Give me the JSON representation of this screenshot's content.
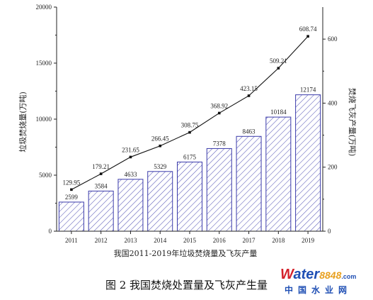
{
  "chart_data": {
    "type": "bar+line",
    "xlabel": "我国2011-2019年垃圾焚烧量及飞灰产量",
    "categories": [
      "2011",
      "2012",
      "2013",
      "2014",
      "2015",
      "2016",
      "2017",
      "2018",
      "2019"
    ],
    "bars": {
      "values": [
        2599,
        3584,
        4633,
        5329,
        6175,
        7378,
        8463,
        10184,
        12174
      ],
      "labels": [
        "2599",
        "3584",
        "4633",
        "5329",
        "6175",
        "7378",
        "8463",
        "10184",
        "12174"
      ],
      "axis": "left",
      "ylabel": "垃圾焚烧量(万吨)",
      "ylim": [
        0,
        20000
      ],
      "ticks": [
        0,
        5000,
        10000,
        15000,
        20000
      ],
      "fill_pattern": "diagonal-hatch",
      "color": "#3a3aaa"
    },
    "line": {
      "values": [
        129.95,
        179.21,
        231.65,
        266.45,
        308.75,
        368.92,
        423.15,
        509.21,
        608.74
      ],
      "labels": [
        "129.95",
        "179.21",
        "231.65",
        "266.45",
        "308.75",
        "368.92",
        "423.15",
        "509.21",
        "608.74"
      ],
      "axis": "right",
      "ylabel": "焚烧飞灰产量(万吨)",
      "ylim": [
        0,
        700
      ],
      "ticks": [
        0,
        200,
        400,
        600
      ],
      "color": "#111111"
    },
    "grid": false
  },
  "caption": "图 2 我国焚烧处置量及飞灰产生量",
  "watermark": {
    "top_a": "W",
    "top_b": "ater",
    "top_c": "8848",
    "top_d": ".com",
    "bottom": "中国水业网"
  }
}
